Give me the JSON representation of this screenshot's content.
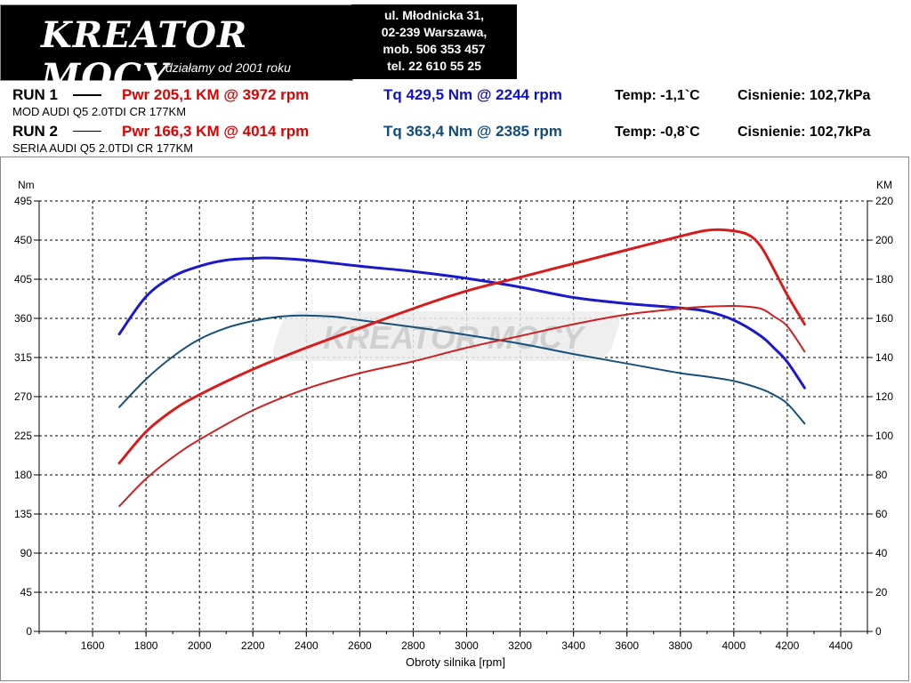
{
  "logo": {
    "brand": "KREATOR MOCY",
    "tagline": "działamy od 2001 roku"
  },
  "address": {
    "lines": [
      "ul. Młodnicka 31,",
      "02-239  Warszawa,",
      "mob.  506 353 457",
      "tel.  22 610 55 25"
    ]
  },
  "runs": [
    {
      "label": "RUN 1",
      "power": "Pwr  205,1 KM @ 3972 rpm",
      "torque": "Tq 429,5 Nm @ 2244 rpm",
      "temp": "Temp: -1,1`C",
      "pressure": "Cisnienie: 102,7kPa",
      "desc": "MOD AUDI Q5 2.0TDI CR 177KM"
    },
    {
      "label": "RUN 2",
      "power": "Pwr  166,3 KM @ 4014 rpm",
      "torque": "Tq 363,4 Nm @ 2385 rpm",
      "temp": "Temp: -0,8`C",
      "pressure": "Cisnienie: 102,7kPa",
      "desc": "SERIA AUDI Q5 2.0TDI CR 177KM"
    }
  ],
  "chart_data": {
    "type": "line",
    "xlabel": "Obroty silnika [rpm]",
    "ylabel_left": "Nm",
    "ylabel_right": "KM",
    "xlim": [
      1400,
      4500
    ],
    "ylim_left": [
      0,
      495
    ],
    "ylim_right": [
      0,
      220
    ],
    "x_ticks": [
      1600,
      1800,
      2000,
      2200,
      2400,
      2600,
      2800,
      3000,
      3200,
      3400,
      3600,
      3800,
      4000,
      4200,
      4400
    ],
    "y_ticks_left": [
      0,
      45,
      90,
      135,
      180,
      225,
      270,
      315,
      360,
      405,
      450,
      495
    ],
    "y_ticks_right": [
      0,
      20,
      40,
      60,
      80,
      100,
      120,
      140,
      160,
      180,
      200,
      220
    ],
    "grid": true,
    "watermark": "KREATOR MOCY",
    "series": [
      {
        "axis": "left",
        "color": "#1a1acc",
        "width": 3,
        "x": [
          1700,
          1800,
          1900,
          2000,
          2100,
          2200,
          2244,
          2300,
          2400,
          2600,
          2800,
          3000,
          3200,
          3400,
          3600,
          3800,
          3900,
          4000,
          4100,
          4150,
          4200,
          4265
        ],
        "y": [
          342,
          385,
          408,
          420,
          427,
          429,
          429.5,
          429,
          427,
          420,
          414,
          406,
          396,
          384,
          377,
          372,
          368,
          358,
          340,
          326,
          310,
          280
        ]
      },
      {
        "axis": "left",
        "color": "#17507a",
        "width": 2,
        "x": [
          1700,
          1800,
          1900,
          2000,
          2100,
          2200,
          2300,
          2385,
          2500,
          2600,
          2800,
          3000,
          3200,
          3400,
          3600,
          3800,
          3900,
          4000,
          4100,
          4150,
          4200,
          4265
        ],
        "y": [
          258,
          290,
          316,
          336,
          349,
          357,
          362,
          363.4,
          362,
          358,
          350,
          341,
          331,
          319,
          308,
          297,
          293,
          288,
          279,
          272,
          262,
          239
        ]
      },
      {
        "axis": "right",
        "color": "#d81b1b",
        "width": 3,
        "x": [
          1700,
          1800,
          1900,
          2000,
          2200,
          2400,
          2600,
          2800,
          3000,
          3200,
          3400,
          3600,
          3800,
          3900,
          3972,
          4050,
          4100,
          4150,
          4200,
          4265
        ],
        "y": [
          86,
          102,
          113,
          121,
          134,
          145,
          155,
          165,
          174,
          181,
          188,
          195,
          202,
          205,
          205.1,
          203,
          197,
          185,
          172,
          157
        ]
      },
      {
        "axis": "right",
        "color": "#cc2222",
        "width": 2,
        "x": [
          1700,
          1800,
          1900,
          2000,
          2200,
          2400,
          2600,
          2800,
          3000,
          3200,
          3400,
          3600,
          3800,
          3900,
          4014,
          4100,
          4150,
          4200,
          4265
        ],
        "y": [
          64,
          78,
          89,
          98,
          113,
          124,
          132,
          138,
          145,
          151,
          157,
          162,
          165,
          166,
          166.3,
          165,
          161,
          156,
          143
        ]
      }
    ]
  }
}
